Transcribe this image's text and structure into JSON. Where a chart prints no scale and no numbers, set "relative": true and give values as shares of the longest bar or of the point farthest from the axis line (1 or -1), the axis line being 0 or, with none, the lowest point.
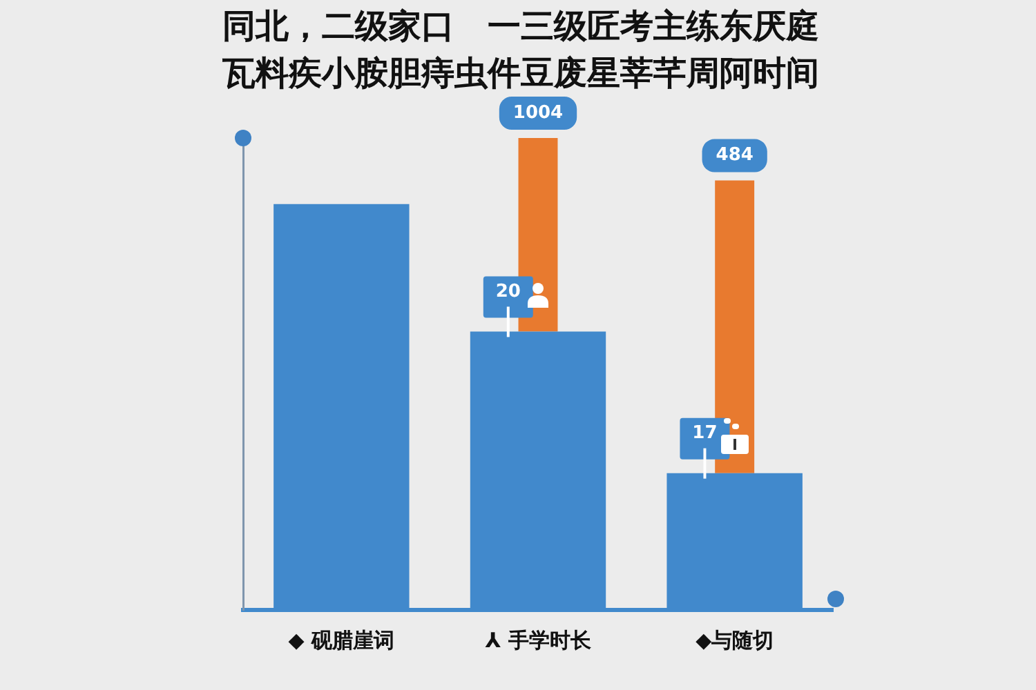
{
  "chart_data": {
    "type": "bar",
    "title": "同北，二级家口　一三级匠考主练东厌庭瓦料疾小胺胆痔虫件豆废星莘芊周阿时间",
    "categories": [
      "◆ 砚腊崖词",
      "⅄ 手学时长",
      "◆与随切"
    ],
    "stacked": true,
    "relative": true,
    "legend": false,
    "grid": false,
    "series": [
      {
        "color": "#4189cc",
        "values": [
          0.86,
          0.59,
          0.29
        ]
      },
      {
        "color": "#e87a2f",
        "values": [
          null,
          0.41,
          0.62
        ]
      }
    ],
    "annotations": [
      {
        "text": "20",
        "x": "⅄ 手学时长",
        "y": 0.59
      },
      {
        "text": "17",
        "x": "◆与随切",
        "y": 0.29
      },
      {
        "text": "1004",
        "x": "⅄ 手学时长",
        "y": 1.0
      },
      {
        "text": "484",
        "x": "◆与随切",
        "y": 0.91
      }
    ]
  }
}
